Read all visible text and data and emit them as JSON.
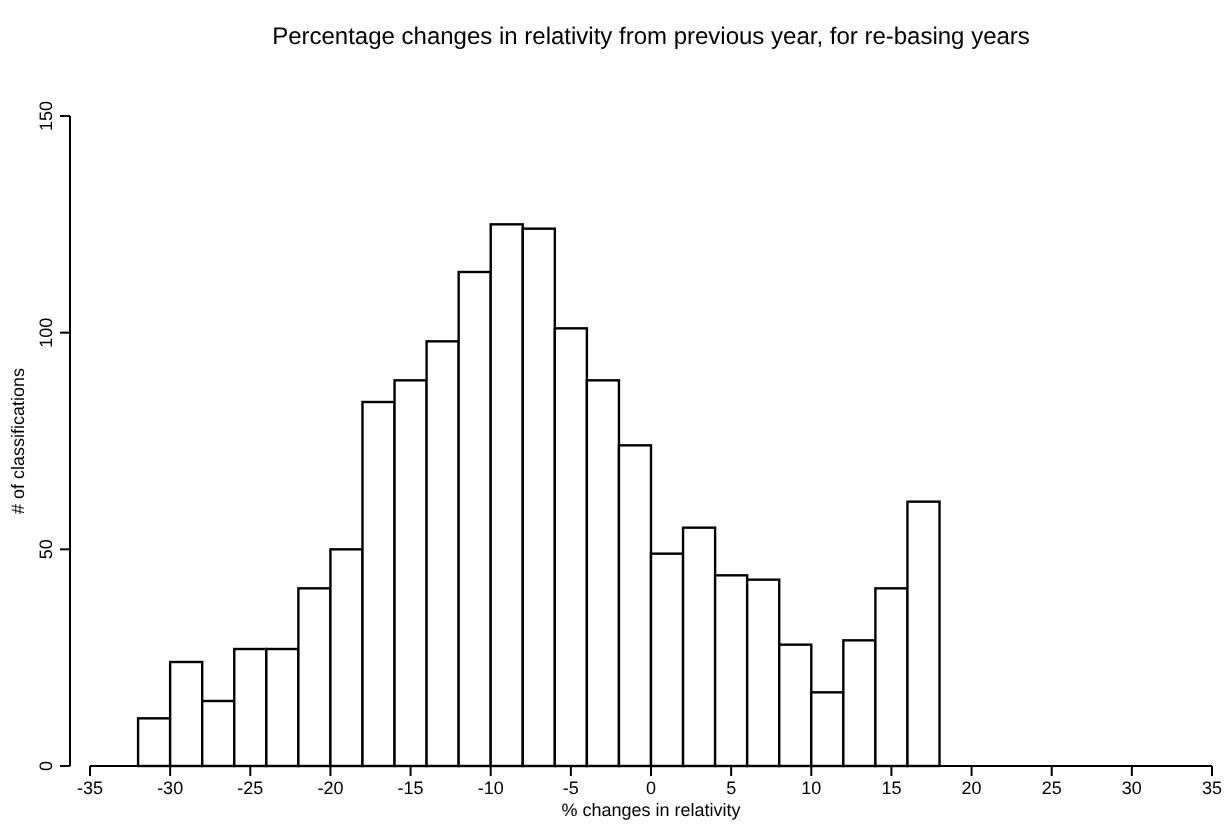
{
  "chart_data": {
    "type": "histogram",
    "title": "Percentage changes in relativity from previous year, for re-basing years",
    "xlabel": "% changes in relativity",
    "ylabel": "# of classifications",
    "bins": [
      -32,
      -30,
      -28,
      -26,
      -24,
      -22,
      -20,
      -18,
      -16,
      -14,
      -12,
      -10,
      -8,
      -6,
      -4,
      -2,
      0,
      2,
      4,
      6,
      8,
      10,
      12,
      14,
      16,
      18
    ],
    "values": [
      11,
      24,
      15,
      27,
      27,
      41,
      50,
      84,
      89,
      98,
      114,
      125,
      124,
      101,
      89,
      74,
      49,
      55,
      44,
      43,
      28,
      17,
      29,
      41,
      61
    ],
    "color": "#ffffff",
    "xlim": [
      -35,
      35
    ],
    "xticks": [
      -35,
      -30,
      -25,
      -20,
      -15,
      -10,
      -5,
      0,
      5,
      10,
      15,
      20,
      25,
      30,
      35
    ],
    "ylim": [
      0,
      150
    ],
    "yticks": [
      0,
      50,
      100,
      150
    ],
    "grid": false
  }
}
